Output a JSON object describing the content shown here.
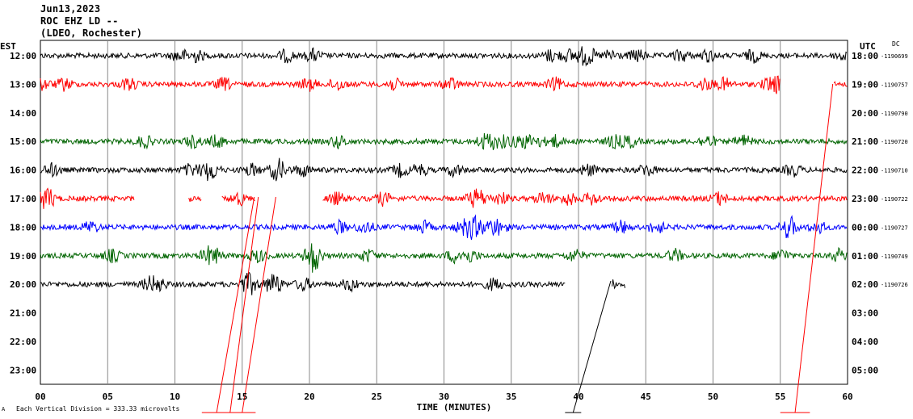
{
  "header": {
    "date": "Jun13,2023",
    "station": "ROC EHZ LD --",
    "network": "(LDEO, Rochester)"
  },
  "left_zone": "EST",
  "right_zone": "UTC",
  "dc_label": "DC",
  "footnote": "Each Vertical Division =  333.33 microvolts",
  "colors": {
    "black": "#000000",
    "red": "#ff0000",
    "green": "#006400",
    "blue": "#0000ff",
    "grid": "#888888"
  },
  "chart_data": {
    "type": "line",
    "title": "",
    "xlabel": "TIME (MINUTES)",
    "ylabel": "",
    "xlim": [
      0,
      60
    ],
    "x_ticks": [
      "00",
      "05",
      "10",
      "15",
      "20",
      "25",
      "30",
      "35",
      "40",
      "45",
      "50",
      "55",
      "60"
    ],
    "grid": true,
    "rows": [
      {
        "est": "12:00",
        "utc": "18:00",
        "dc": "-1190699",
        "color": "black",
        "segments": [
          [
            0,
            60
          ]
        ]
      },
      {
        "est": "13:00",
        "utc": "19:00",
        "dc": "-1190757",
        "color": "red",
        "segments": [
          [
            0,
            55
          ],
          [
            59,
            60
          ]
        ]
      },
      {
        "est": "14:00",
        "utc": "20:00",
        "dc": "-1190790",
        "color": "green",
        "segments": []
      },
      {
        "est": "15:00",
        "utc": "21:00",
        "dc": "-1190720",
        "color": "green",
        "segments": [
          [
            0,
            60
          ]
        ]
      },
      {
        "est": "16:00",
        "utc": "22:00",
        "dc": "-1190710",
        "color": "black",
        "segments": [
          [
            0,
            60
          ]
        ]
      },
      {
        "est": "17:00",
        "utc": "23:00",
        "dc": "-1190722",
        "color": "red",
        "segments": [
          [
            0,
            7
          ],
          [
            11,
            12
          ],
          [
            13.5,
            16
          ],
          [
            21,
            60
          ]
        ]
      },
      {
        "est": "18:00",
        "utc": "00:00",
        "dc": "-1190727",
        "color": "blue",
        "segments": [
          [
            0,
            60
          ]
        ]
      },
      {
        "est": "19:00",
        "utc": "01:00",
        "dc": "-1190749",
        "color": "green",
        "segments": [
          [
            0,
            60
          ]
        ]
      },
      {
        "est": "20:00",
        "utc": "02:00",
        "dc": "-1190726",
        "color": "black",
        "segments": [
          [
            0,
            39
          ],
          [
            42.5,
            43.5
          ]
        ]
      },
      {
        "est": "21:00",
        "utc": "03:00",
        "dc": "",
        "color": "black",
        "segments": []
      },
      {
        "est": "22:00",
        "utc": "04:00",
        "dc": "",
        "color": "black",
        "segments": []
      },
      {
        "est": "23:00",
        "utc": "05:00",
        "dc": "",
        "color": "black",
        "segments": []
      }
    ]
  }
}
